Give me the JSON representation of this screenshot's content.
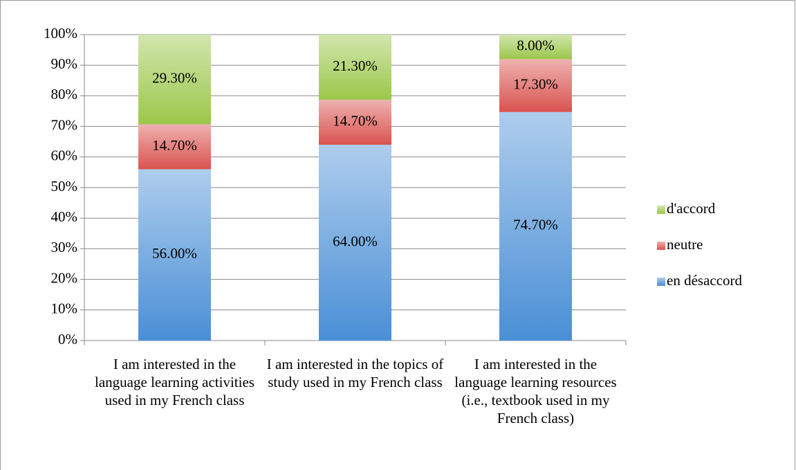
{
  "chart_data": {
    "type": "stacked_bar",
    "categories": [
      "I am interested in the language learning activities used in my French class",
      "I am interested in the topics of study used in my French class",
      "I am interested in the language learning resources (i.e., textbook used in my French class)"
    ],
    "series": [
      {
        "name": "en désaccord",
        "color": "#4a8fd6",
        "values": [
          56.0,
          64.0,
          74.7
        ],
        "value_labels": [
          "56.00%",
          "64.00%",
          "74.70%"
        ]
      },
      {
        "name": "neutre",
        "color": "#d9534f",
        "values": [
          14.7,
          14.7,
          17.3
        ],
        "value_labels": [
          "14.70%",
          "14.70%",
          "17.30%"
        ]
      },
      {
        "name": "d'accord",
        "color": "#9bc74a",
        "values": [
          29.3,
          21.3,
          8.0
        ],
        "value_labels": [
          "29.30%",
          "21.30%",
          "8.00%"
        ]
      }
    ],
    "ylim": [
      0,
      100
    ],
    "yticks": [
      {
        "value": 0,
        "label": "0%"
      },
      {
        "value": 10,
        "label": "10%"
      },
      {
        "value": 20,
        "label": "20%"
      },
      {
        "value": 30,
        "label": "30%"
      },
      {
        "value": 40,
        "label": "40%"
      },
      {
        "value": 50,
        "label": "50%"
      },
      {
        "value": 60,
        "label": "60%"
      },
      {
        "value": 70,
        "label": "70%"
      },
      {
        "value": 80,
        "label": "80%"
      },
      {
        "value": 90,
        "label": "90%"
      },
      {
        "value": 100,
        "label": "100%"
      }
    ],
    "grid": true,
    "legend": "right"
  }
}
